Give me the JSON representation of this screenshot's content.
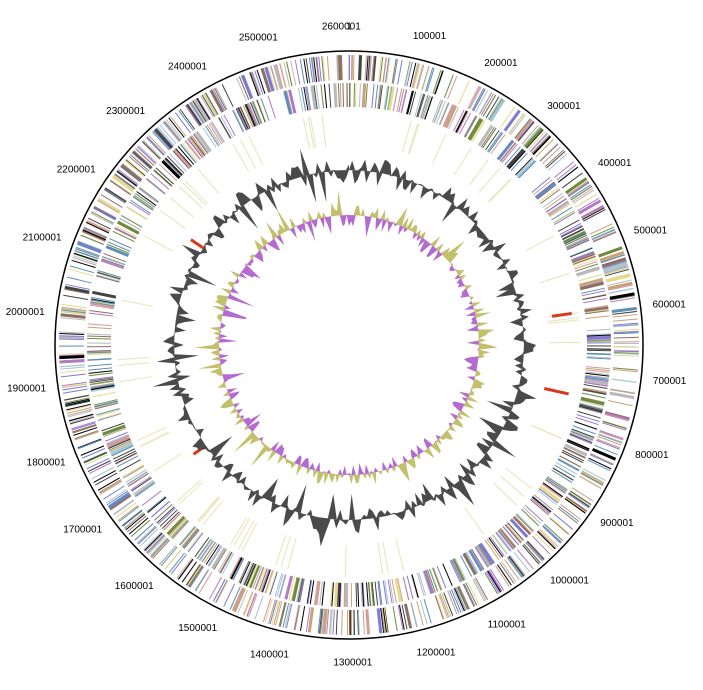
{
  "ticks": [
    "1",
    "100001",
    "200001",
    "300001",
    "400001",
    "500001",
    "600001",
    "700001",
    "800001",
    "900001",
    "1000001",
    "1100001",
    "1200001",
    "1300001",
    "1400001",
    "1500001",
    "1600001",
    "1700001",
    "1800001",
    "1900001",
    "2000001",
    "2100001",
    "2200001",
    "2300001",
    "2400001",
    "2500001",
    "2600001"
  ]
}
